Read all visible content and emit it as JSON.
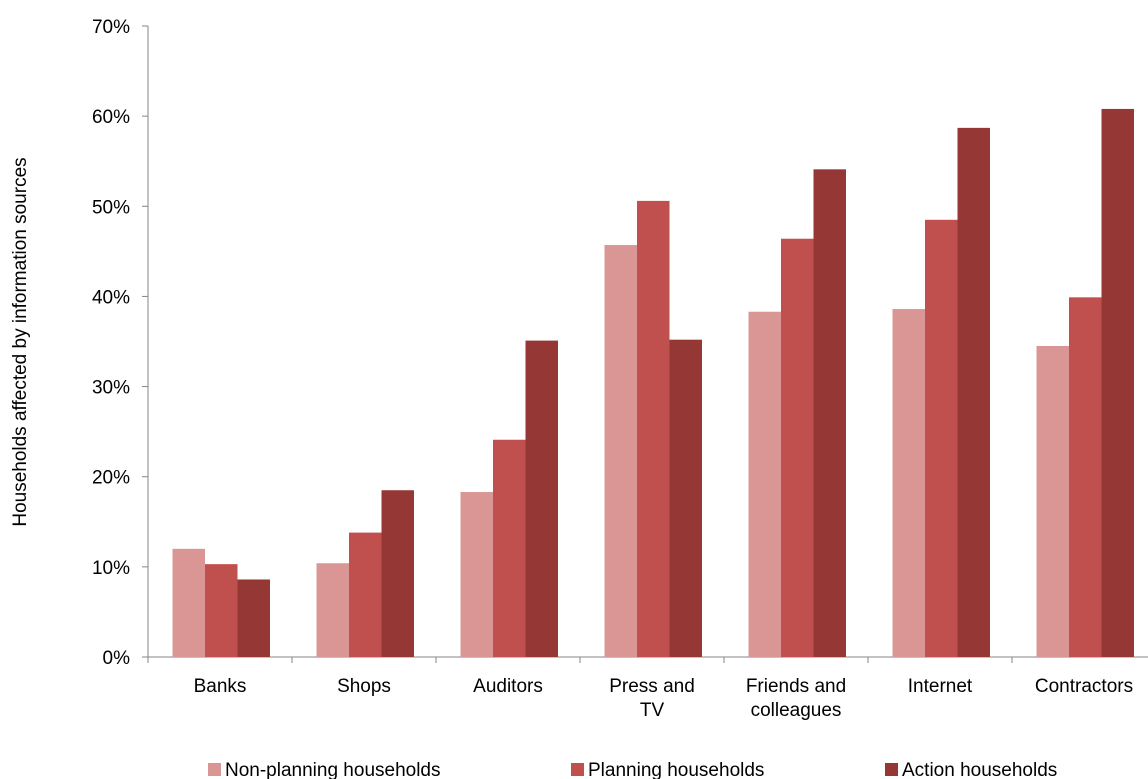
{
  "chart_data": {
    "type": "bar",
    "title": "",
    "xlabel": "",
    "ylabel": "Households affected by information sources",
    "ylim": [
      0,
      0.7
    ],
    "ytick_step": 0.1,
    "y_format": "percent",
    "grid": false,
    "legend_position": "bottom",
    "categories": [
      [
        "Banks"
      ],
      [
        "Shops"
      ],
      [
        "Auditors"
      ],
      [
        "Press and",
        "TV"
      ],
      [
        "Friends and",
        "colleagues"
      ],
      [
        "Internet"
      ],
      [
        "Contractors"
      ]
    ],
    "series": [
      {
        "name": "Non-planning households",
        "color": "#d99694",
        "values": [
          0.12,
          0.104,
          0.183,
          0.457,
          0.383,
          0.386,
          0.345
        ]
      },
      {
        "name": "Planning households",
        "color": "#c0504d",
        "values": [
          0.103,
          0.138,
          0.241,
          0.506,
          0.464,
          0.485,
          0.399
        ]
      },
      {
        "name": "Action households",
        "color": "#953735",
        "values": [
          0.086,
          0.185,
          0.351,
          0.352,
          0.541,
          0.587,
          0.608
        ]
      }
    ]
  }
}
